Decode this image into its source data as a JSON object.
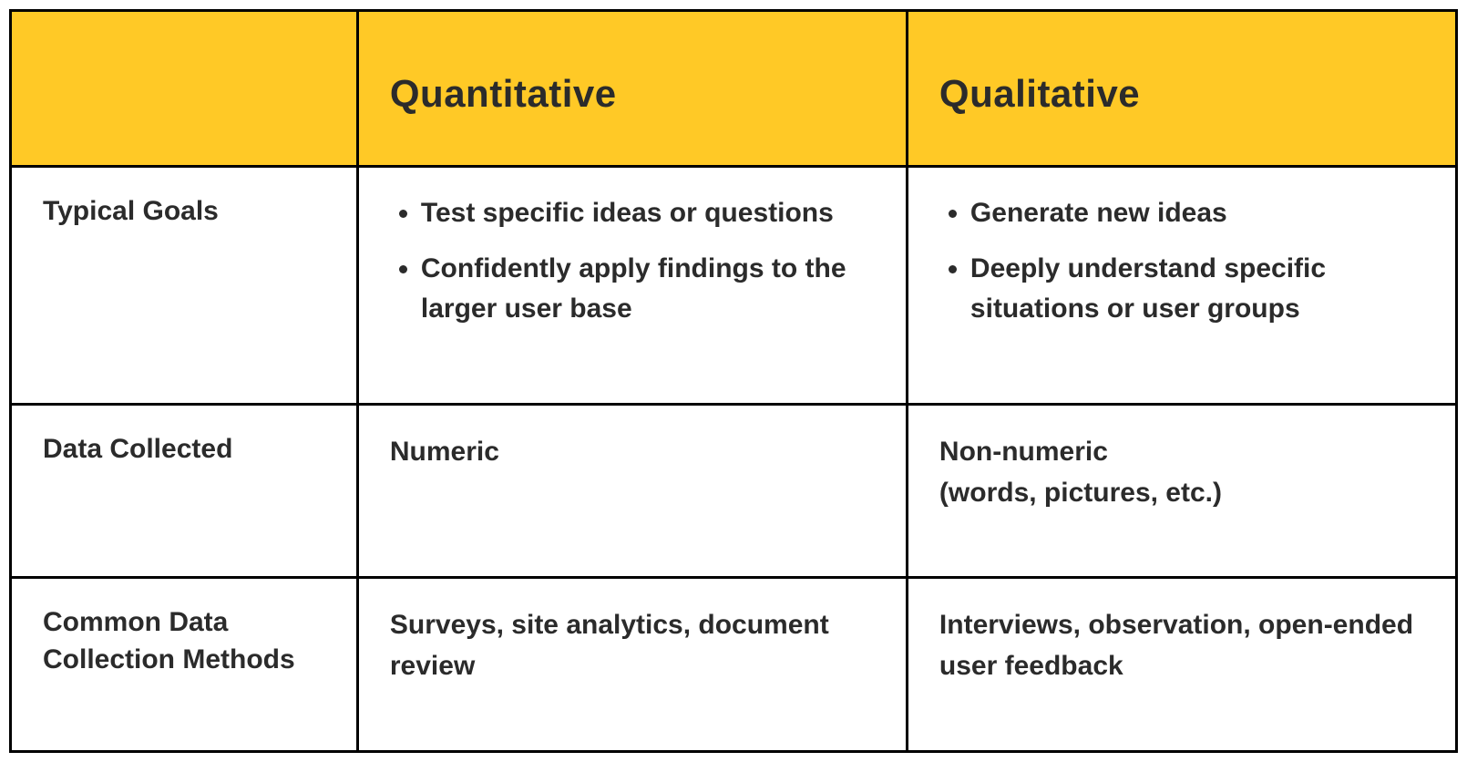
{
  "table": {
    "type": "table",
    "header_bg": "#ffc926",
    "border_color": "#000000",
    "text_color": "#2b2b2b",
    "header_fontsize_pt": 32,
    "body_fontsize_pt": 22,
    "columns": [
      "",
      "Quantitative",
      "Qualitative"
    ],
    "col_widths_pct": [
      24,
      38,
      38
    ],
    "rows": [
      {
        "label": "Typical Goals",
        "quantitative": {
          "kind": "bullets",
          "items": [
            "Test specific ideas or questions",
            "Confidently apply findings to the larger user base"
          ]
        },
        "qualitative": {
          "kind": "bullets",
          "items": [
            "Generate new ideas",
            "Deeply understand specific situations or user groups"
          ]
        }
      },
      {
        "label": "Data Collected",
        "quantitative": {
          "kind": "text",
          "text": "Numeric"
        },
        "qualitative": {
          "kind": "text",
          "text": "Non-numeric\n(words, pictures, etc.)"
        }
      },
      {
        "label": "Common Data Collection Methods",
        "quantitative": {
          "kind": "text",
          "text": "Surveys, site analytics, document review"
        },
        "qualitative": {
          "kind": "text",
          "text": "Interviews, observation, open-ended user feedback"
        }
      }
    ]
  }
}
